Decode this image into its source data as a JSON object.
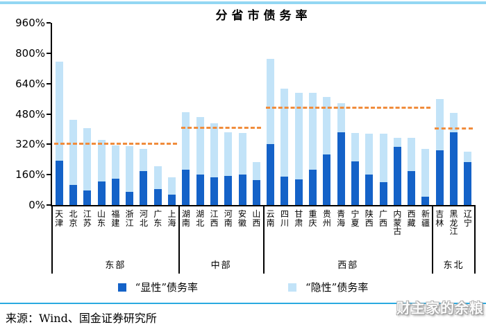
{
  "page": {
    "title": "分省市债务率"
  },
  "legend": {
    "items": [
      {
        "label": "“显性”债务率",
        "color": "#1462C8"
      },
      {
        "label": "“隐性”债务率",
        "color": "#C2E3F8"
      }
    ]
  },
  "footer": {
    "source": "来源：Wind、国金证券研究所",
    "watermark": "财主家的余粮"
  },
  "colors": {
    "explicit": "#1462C8",
    "implicit": "#C2E3F8",
    "benchmark": "#F08C3C",
    "top_rule": "#93D7F3",
    "footer_rule": "#29A9E0",
    "axis": "#000000"
  },
  "chart_data": {
    "type": "bar",
    "stacked": true,
    "title": "分省市债务率",
    "unit": "%",
    "ylim": [
      0,
      960
    ],
    "y_ticks": [
      0,
      160,
      320,
      480,
      640,
      800,
      960
    ],
    "grid": false,
    "legend_position": "bottom",
    "series_names": [
      "“显性”债务率",
      "“隐性”债务率"
    ],
    "groups": [
      {
        "region": "东部",
        "benchmark_line": 320,
        "provinces": [
          "天津",
          "北京",
          "江苏",
          "山东",
          "福建",
          "浙江",
          "河北",
          "广东",
          "上海"
        ],
        "explicit": [
          235,
          105,
          75,
          125,
          140,
          70,
          180,
          85,
          55
        ],
        "implicit": [
          520,
          345,
          330,
          220,
          175,
          240,
          115,
          120,
          90
        ]
      },
      {
        "region": "中部",
        "benchmark_line": 405,
        "provinces": [
          "湖南",
          "湖北",
          "江西",
          "河南",
          "安徽",
          "山西"
        ],
        "explicit": [
          185,
          160,
          145,
          155,
          160,
          130
        ],
        "implicit": [
          305,
          305,
          285,
          230,
          220,
          95
        ]
      },
      {
        "region": "西部",
        "benchmark_line": 510,
        "provinces": [
          "云南",
          "四川",
          "甘肃",
          "重庆",
          "贵州",
          "青海",
          "宁夏",
          "陕西",
          "广西",
          "内蒙古",
          "西藏",
          "新疆"
        ],
        "explicit": [
          320,
          150,
          135,
          185,
          265,
          385,
          230,
          160,
          120,
          305,
          180,
          45
        ],
        "implicit": [
          450,
          465,
          455,
          405,
          305,
          150,
          150,
          215,
          255,
          50,
          175,
          250
        ]
      },
      {
        "region": "东北",
        "benchmark_line": 400,
        "provinces": [
          "吉林",
          "黑龙江",
          "辽宁"
        ],
        "explicit": [
          290,
          385,
          225
        ],
        "implicit": [
          270,
          100,
          55
        ]
      }
    ]
  }
}
